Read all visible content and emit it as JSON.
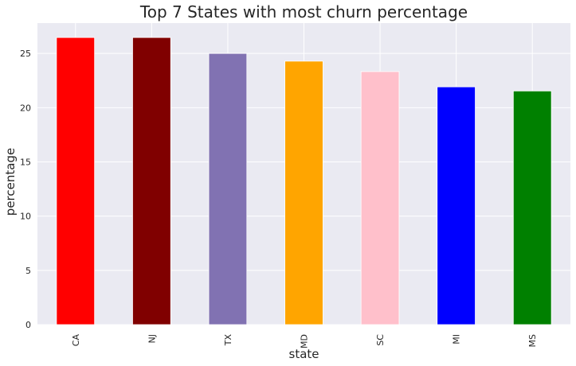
{
  "chart_data": {
    "type": "bar",
    "title": "Top 7 States with most churn percentage",
    "xlabel": "state",
    "ylabel": "percentage",
    "categories": [
      "CA",
      "NJ",
      "TX",
      "MD",
      "SC",
      "MI",
      "MS"
    ],
    "values": [
      26.47,
      26.47,
      25.0,
      24.29,
      23.33,
      21.92,
      21.54
    ],
    "colors": [
      "#ff0000",
      "#800000",
      "#8172b2",
      "#ffa500",
      "#ffc0cb",
      "#0000ff",
      "#008000"
    ],
    "ylim": [
      0,
      27.8
    ],
    "yticks": [
      0,
      5,
      10,
      15,
      20,
      25
    ],
    "grid": true,
    "background": "#eaeaf2",
    "grid_color": "#ffffff"
  }
}
